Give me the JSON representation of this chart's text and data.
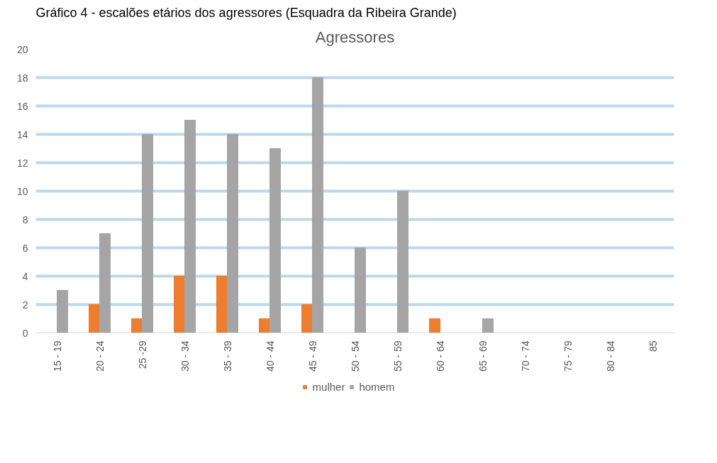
{
  "chart_data": {
    "type": "bar",
    "title": "Agressores",
    "annotations": [
      "Gráfico 4 - escalões etários dos agressores (Esquadra da Ribeira Grande)"
    ],
    "categories": [
      "15 - 19",
      "20 - 24",
      "25 -29",
      "30 - 34",
      "35 - 39",
      "40 - 44",
      "45 - 49",
      "50 - 54",
      "55 - 59",
      "60 - 64",
      "65 - 69",
      "70 - 74",
      "75 - 79",
      "80 - 84",
      "85"
    ],
    "series": [
      {
        "name": "mulher",
        "color": "#ed7d31",
        "values": [
          0,
          2,
          1,
          4,
          4,
          1,
          2,
          0,
          0,
          1,
          0,
          0,
          0,
          0,
          0
        ]
      },
      {
        "name": "homem",
        "color": "#a5a5a5",
        "values": [
          3,
          7,
          14,
          15,
          14,
          13,
          18,
          6,
          10,
          0,
          1,
          0,
          0,
          0,
          0
        ]
      }
    ],
    "ylim": [
      0,
      20
    ],
    "yticks": [
      0,
      2,
      4,
      6,
      8,
      10,
      12,
      14,
      16,
      18,
      20
    ],
    "grid": "y",
    "legend": "bottom"
  }
}
